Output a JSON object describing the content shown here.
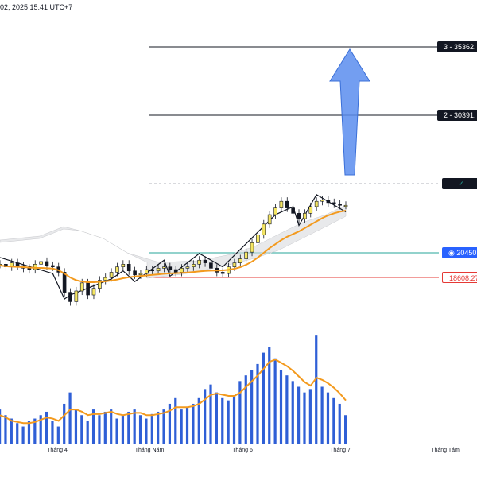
{
  "header": {
    "timestamp": "02, 2025 15:41 UTC+7"
  },
  "levels": {
    "target_3": "3 - 35362.",
    "target_2": "2 - 30391.",
    "check": "✓",
    "current": "◉ 20450",
    "stop": "18608.27"
  },
  "x_axis": {
    "ticks": [
      "Tháng 4",
      "Tháng Năm",
      "Tháng 6",
      "Tháng 7",
      "Tháng Tám"
    ]
  },
  "colors": {
    "accent_arrow": "#5b8def",
    "ma_line": "#f39a1e",
    "volume": "#2f5fd6",
    "stop": "#e53935",
    "current": "#26a69a"
  },
  "chart_data": {
    "type": "line",
    "title": "",
    "price_series": [
      19600,
      19400,
      19700,
      19500,
      19300,
      19200,
      19600,
      19800,
      19500,
      19400,
      19000,
      17500,
      16800,
      17600,
      18200,
      17300,
      17800,
      18400,
      18600,
      19000,
      19400,
      19600,
      19100,
      18800,
      18900,
      19200,
      19100,
      19300,
      19400,
      19200,
      19000,
      19300,
      19400,
      19600,
      19900,
      19700,
      19300,
      19000,
      18900,
      19400,
      19700,
      20000,
      20500,
      21200,
      21800,
      22600,
      23300,
      23800,
      24300,
      23800,
      23400,
      23000,
      23400,
      23900,
      24300,
      24400,
      24200,
      24100,
      24000,
      24000
    ],
    "ma_series": [
      19500,
      19450,
      19420,
      19400,
      19380,
      19350,
      19330,
      19320,
      19300,
      19280,
      19150,
      18900,
      18600,
      18400,
      18300,
      18250,
      18250,
      18280,
      18320,
      18380,
      18450,
      18550,
      18620,
      18680,
      18720,
      18760,
      18800,
      18840,
      18880,
      18910,
      18930,
      18950,
      18980,
      19020,
      19060,
      19100,
      19120,
      19130,
      19140,
      19180,
      19260,
      19380,
      19560,
      19800,
      20100,
      20450,
      20800,
      21100,
      21400,
      21650,
      21850,
      22050,
      22300,
      22550,
      22800,
      23050,
      23250,
      23400,
      23520,
      23600
    ],
    "volume": [
      30,
      25,
      22,
      18,
      15,
      20,
      22,
      25,
      28,
      20,
      15,
      35,
      45,
      30,
      25,
      20,
      30,
      25,
      28,
      30,
      22,
      25,
      28,
      30,
      25,
      22,
      26,
      28,
      30,
      35,
      40,
      30,
      32,
      35,
      40,
      48,
      52,
      45,
      40,
      38,
      42,
      55,
      60,
      65,
      70,
      80,
      85,
      75,
      65,
      60,
      55,
      50,
      45,
      48,
      95,
      50,
      45,
      40,
      35,
      25
    ],
    "volume_ma": [
      25,
      23,
      20,
      19,
      18,
      18,
      19,
      21,
      23,
      22,
      20,
      25,
      30,
      30,
      28,
      25,
      26,
      26,
      27,
      28,
      26,
      25,
      26,
      27,
      27,
      25,
      25,
      26,
      27,
      29,
      32,
      32,
      32,
      33,
      35,
      39,
      43,
      44,
      43,
      42,
      42,
      45,
      50,
      55,
      60,
      66,
      72,
      74,
      71,
      68,
      64,
      59,
      54,
      51,
      58,
      56,
      53,
      49,
      44,
      38
    ],
    "levels": [
      35362,
      30391,
      20450,
      18608.27
    ]
  }
}
